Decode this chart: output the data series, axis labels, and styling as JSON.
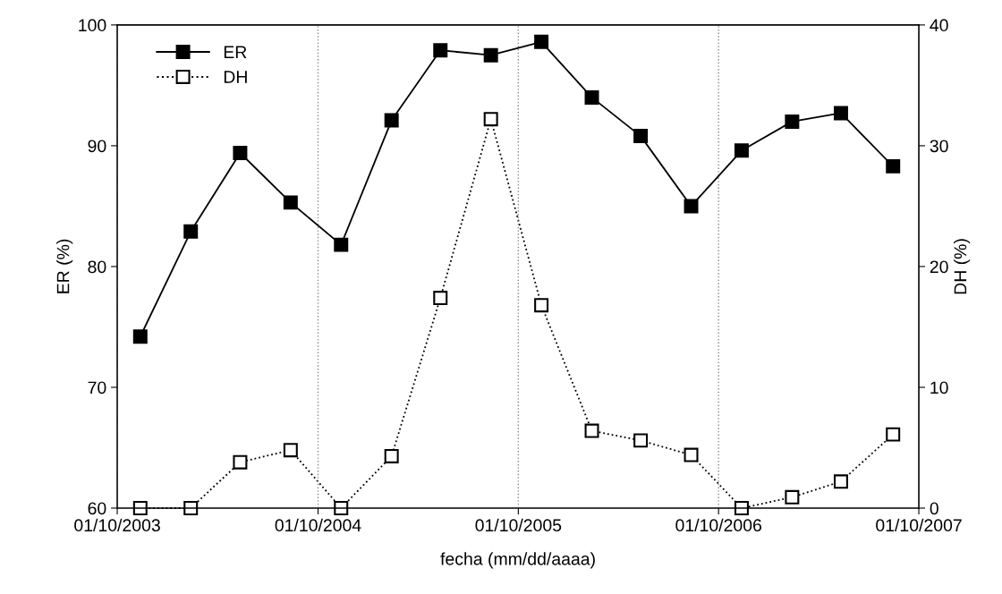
{
  "chart_data": {
    "type": "line",
    "xlabel": "fecha (mm/dd/aaaa)",
    "ylabel": "ER (%)",
    "y2label": "DH (%)",
    "x": [
      "2003-11-12",
      "2004-02-12",
      "2004-05-12",
      "2004-08-12",
      "2004-11-12",
      "2005-02-12",
      "2005-05-12",
      "2005-08-12",
      "2005-11-12",
      "2006-02-12",
      "2006-05-12",
      "2006-08-12",
      "2006-11-12",
      "2007-02-12",
      "2007-05-12",
      "2007-08-15"
    ],
    "series": [
      {
        "name": "ER",
        "color": "#000000",
        "line_style": "solid",
        "marker": "square",
        "values": [
          74.2,
          82.9,
          89.4,
          85.3,
          81.8,
          92.1,
          97.9,
          97.5,
          98.6,
          94.0,
          90.8,
          85.0,
          89.6,
          92.0,
          92.7,
          88.3
        ]
      },
      {
        "name": "DH",
        "color": "#000000",
        "line_style": "dotted",
        "marker": "square",
        "axis": "y2",
        "values": [
          0,
          0,
          3.8,
          4.8,
          0,
          4.3,
          17.4,
          32.2,
          16.8,
          6.4,
          5.6,
          4.4,
          0,
          0.9,
          2.2,
          6.1
        ]
      }
    ],
    "xlim": [
      "2003-10-01",
      "2007-10-01"
    ],
    "xticks": [
      {
        "value": "2003-10-01",
        "label": "01/10/2003"
      },
      {
        "value": "2004-10-01",
        "label": "01/10/2004"
      },
      {
        "value": "2005-10-01",
        "label": "01/10/2005"
      },
      {
        "value": "2006-10-01",
        "label": "01/10/2006"
      },
      {
        "value": "2007-10-01",
        "label": "01/10/2007"
      }
    ],
    "ylim": [
      60,
      100
    ],
    "yticks": [
      60,
      70,
      80,
      90,
      100
    ],
    "y2lim": [
      0,
      40
    ],
    "y2ticks": [
      0,
      10,
      20,
      30,
      40
    ],
    "grid": "x",
    "legend": "top left"
  }
}
